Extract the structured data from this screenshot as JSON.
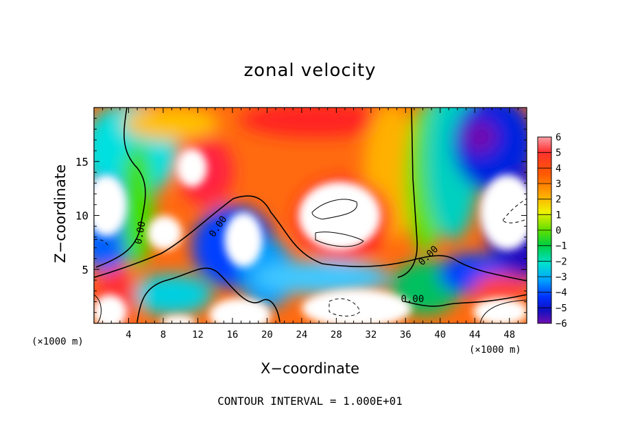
{
  "chart_data": {
    "type": "heatmap",
    "title": "zonal velocity",
    "xlabel": "X−coordinate",
    "ylabel": "Z−coordinate",
    "x_unit_label": "(×1000 m)",
    "y_unit_label": "(×1000 m)",
    "xlim": [
      0,
      50
    ],
    "ylim": [
      0,
      20
    ],
    "x_ticks": [
      4,
      8,
      12,
      16,
      20,
      24,
      28,
      32,
      36,
      40,
      44,
      48
    ],
    "x_tick_labels": [
      "4",
      "8",
      "12",
      "16",
      "20",
      "24",
      "28",
      "32",
      "36",
      "40",
      "44",
      "48"
    ],
    "y_ticks": [
      5,
      10,
      15
    ],
    "y_tick_labels": [
      "5",
      "10",
      "15"
    ],
    "colorbar": {
      "min": -6,
      "max": 6,
      "tick_values": [
        6,
        5,
        4,
        3,
        2,
        1,
        0,
        -1,
        -2,
        -3,
        -4,
        -5,
        -6
      ],
      "tick_labels": [
        "6",
        "5",
        "4",
        "3",
        "2",
        "1",
        "0",
        "−1",
        "−2",
        "−3",
        "−4",
        "−5",
        "−6"
      ]
    },
    "contour_labels": [
      {
        "text": "0.00",
        "x": 5.3,
        "y": 8.4,
        "rotate": -80
      },
      {
        "text": "0.00",
        "x": 14.3,
        "y": 9.0,
        "rotate": -55
      },
      {
        "text": "0.00",
        "x": 38.6,
        "y": 6.3,
        "rotate": -45
      },
      {
        "text": "0.00",
        "x": 36.8,
        "y": 2.3,
        "rotate": 0
      }
    ],
    "footer": "CONTOUR INTERVAL = 1.000E+01"
  }
}
